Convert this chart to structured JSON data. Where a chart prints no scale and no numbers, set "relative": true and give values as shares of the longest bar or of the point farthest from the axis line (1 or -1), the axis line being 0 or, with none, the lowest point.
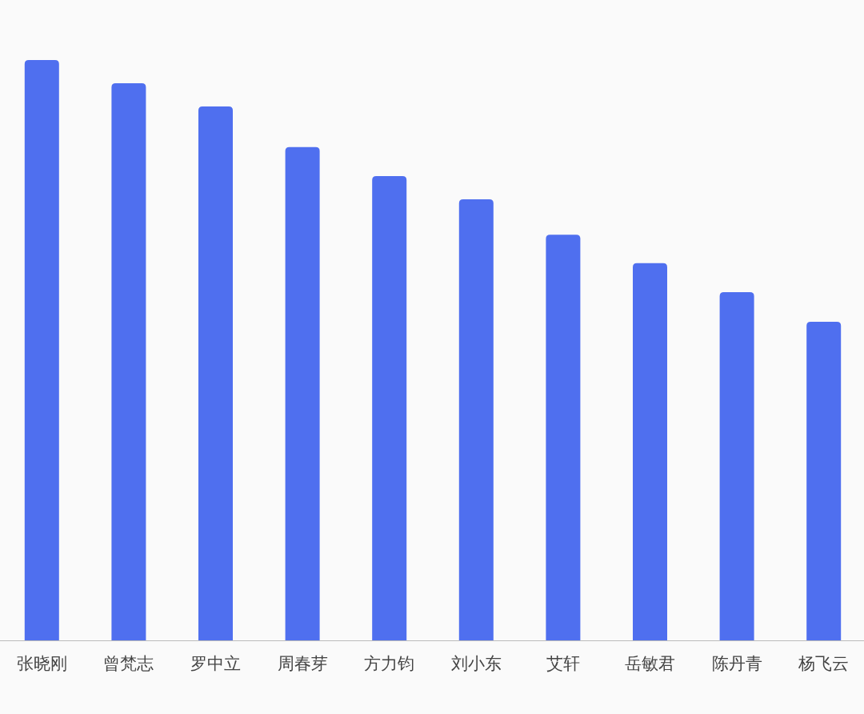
{
  "chart_data": {
    "type": "bar",
    "relative": true,
    "categories": [
      "张晓刚",
      "曾梵志",
      "罗中立",
      "周春芽",
      "方力钧",
      "刘小东",
      "艾轩",
      "岳敏君",
      "陈丹青",
      "杨飞云"
    ],
    "values": [
      1,
      0.96,
      0.92,
      0.85,
      0.8,
      0.76,
      0.699,
      0.65,
      0.6,
      0.549
    ],
    "color": "#4f6fef"
  }
}
